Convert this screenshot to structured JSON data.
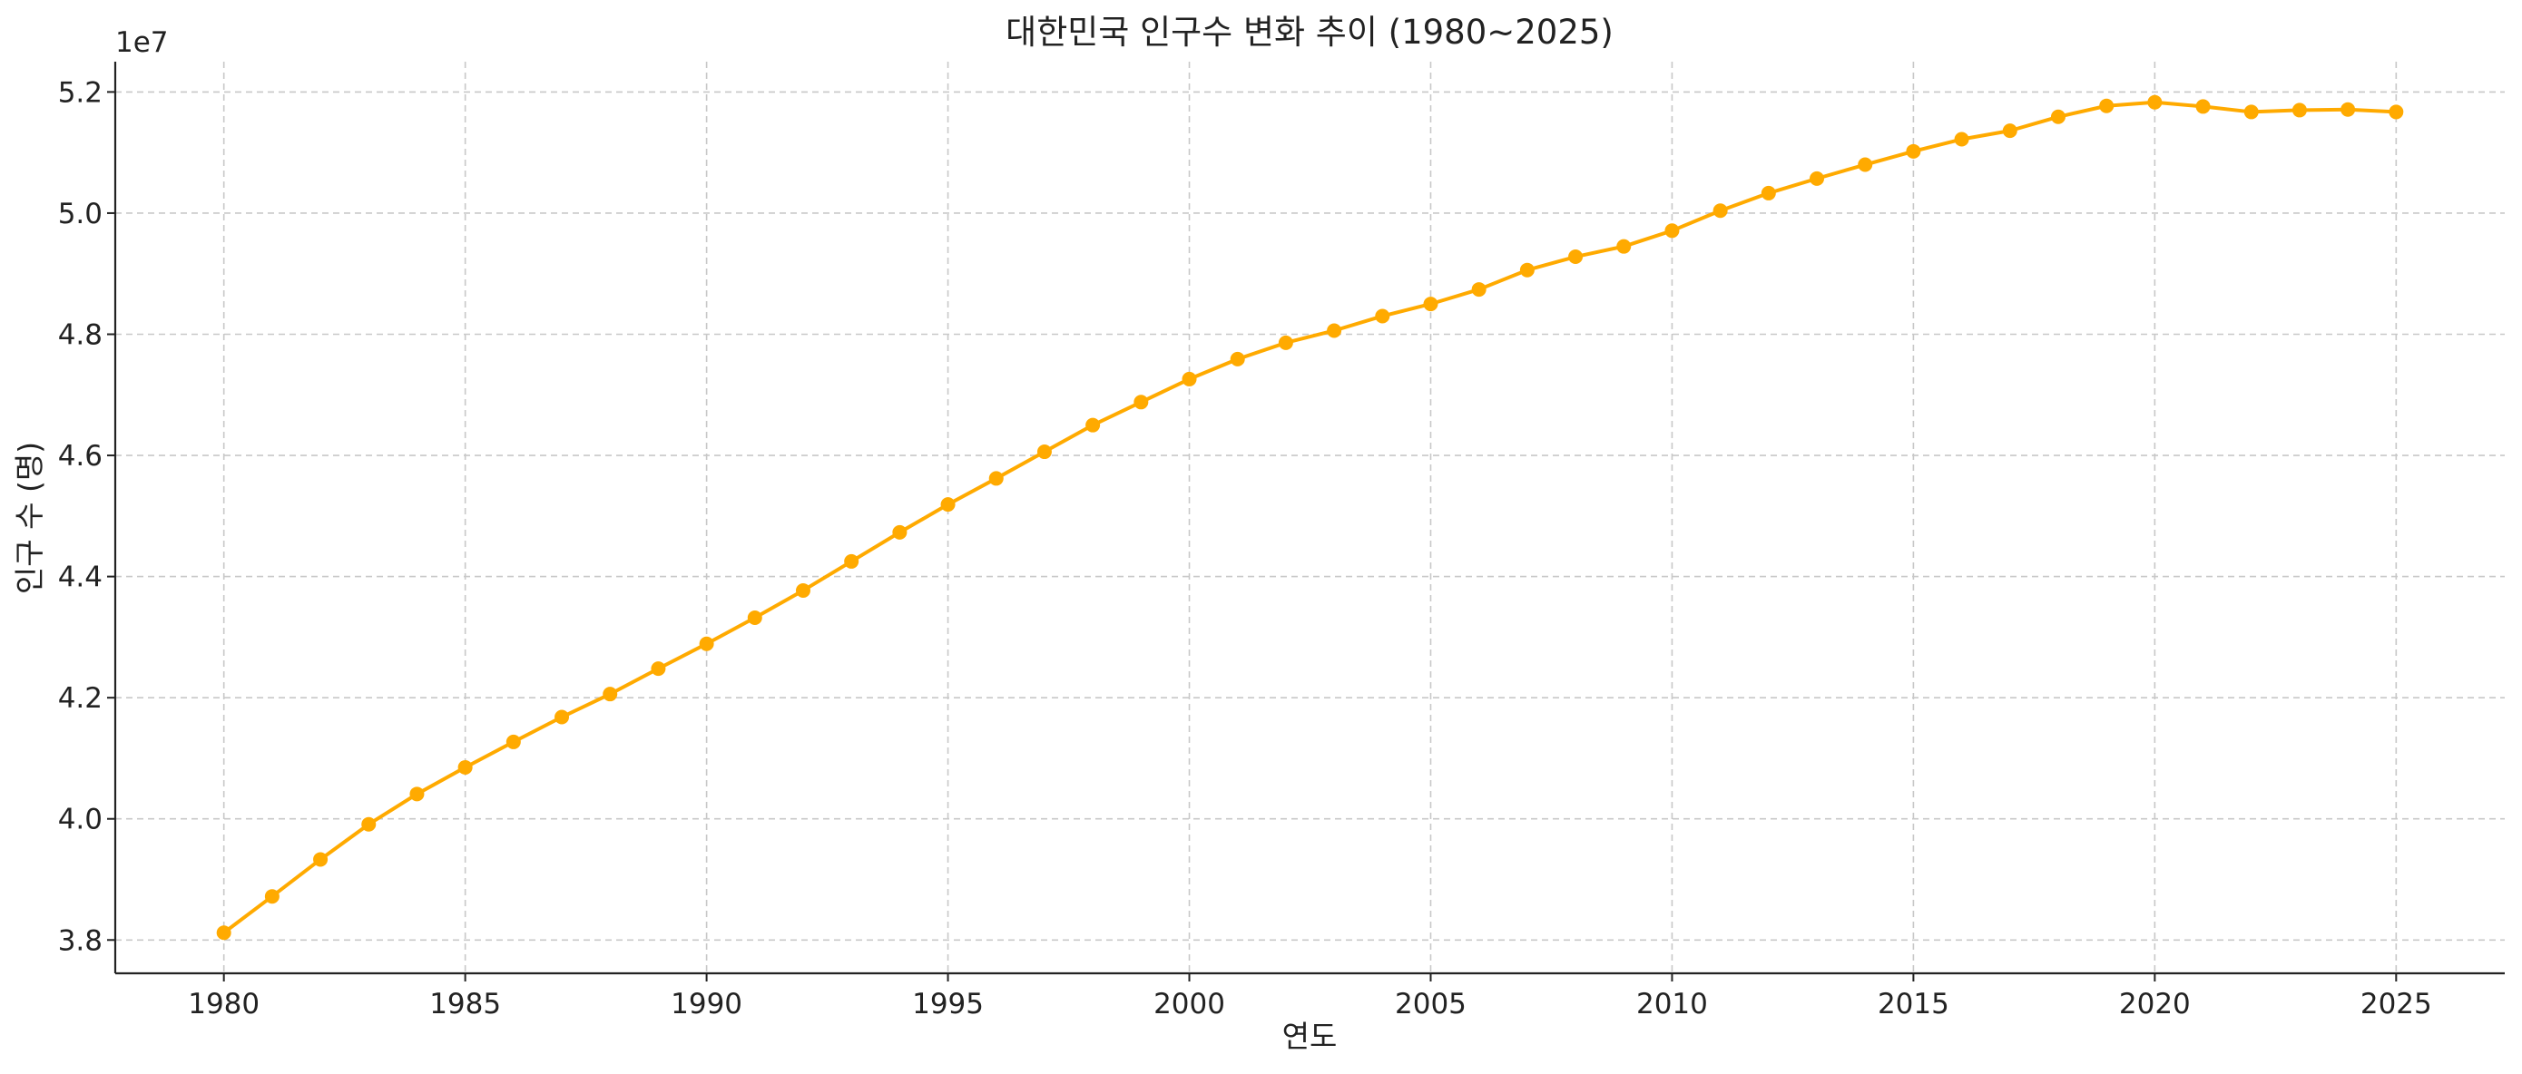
{
  "chart_data": {
    "type": "line",
    "title": "대한민국 인구수 변화 추이 (1980~2025)",
    "xlabel": "연도",
    "ylabel": "인구 수 (명)",
    "y_exponent_label": "1e7",
    "y_scale_factor": 10000000,
    "x": [
      1980,
      1981,
      1982,
      1983,
      1984,
      1985,
      1986,
      1987,
      1988,
      1989,
      1990,
      1991,
      1992,
      1993,
      1994,
      1995,
      1996,
      1997,
      1998,
      1999,
      2000,
      2001,
      2002,
      2003,
      2004,
      2005,
      2006,
      2007,
      2008,
      2009,
      2010,
      2011,
      2012,
      2013,
      2014,
      2015,
      2016,
      2017,
      2018,
      2019,
      2020,
      2021,
      2022,
      2023,
      2024,
      2025
    ],
    "series": [
      {
        "name": "",
        "color": "#FFAA00",
        "values": [
          38120000,
          38720000,
          39330000,
          39910000,
          40410000,
          40850000,
          41270000,
          41680000,
          42060000,
          42480000,
          42890000,
          43320000,
          43770000,
          44250000,
          44730000,
          45190000,
          45620000,
          46060000,
          46500000,
          46880000,
          47260000,
          47590000,
          47860000,
          48060000,
          48300000,
          48500000,
          48740000,
          49060000,
          49280000,
          49450000,
          49710000,
          50040000,
          50330000,
          50570000,
          50800000,
          51020000,
          51220000,
          51360000,
          51590000,
          51770000,
          51830000,
          51760000,
          51670000,
          51700000,
          51710000,
          51670000
        ]
      }
    ],
    "xlim": [
      1977.75,
      2027.25
    ],
    "ylim": [
      37450000,
      52500000
    ],
    "x_ticks": [
      1980,
      1985,
      1990,
      1995,
      2000,
      2005,
      2010,
      2015,
      2020,
      2025
    ],
    "y_ticks": [
      38000000,
      40000000,
      42000000,
      44000000,
      46000000,
      48000000,
      50000000,
      52000000
    ],
    "y_tick_labels": [
      "3.8",
      "4.0",
      "4.2",
      "4.4",
      "4.6",
      "4.8",
      "5.0",
      "5.2"
    ],
    "grid": true,
    "legend": "none"
  }
}
